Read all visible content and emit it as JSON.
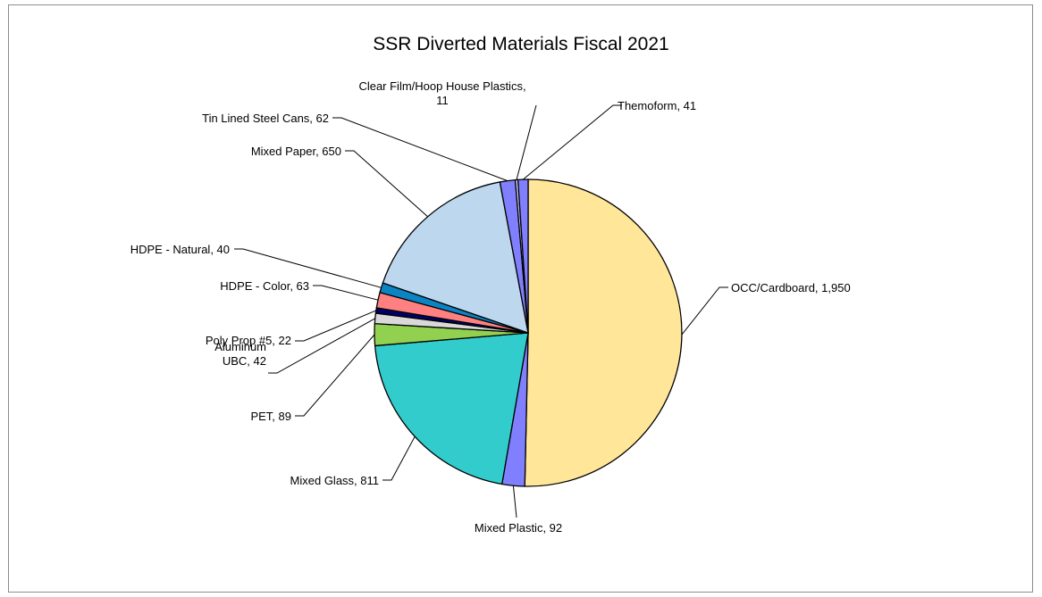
{
  "chart_data": {
    "type": "pie",
    "title": "SSR Diverted Materials Fiscal 2021",
    "slices": [
      {
        "label_lines": [
          "OCC/Cardboard, 1,950"
        ],
        "value": 1950,
        "color": "#ffe699"
      },
      {
        "label_lines": [
          "Mixed Plastic, 92"
        ],
        "value": 92,
        "color": "#8080ff"
      },
      {
        "label_lines": [
          "Mixed Glass, 811"
        ],
        "value": 811,
        "color": "#33cccc"
      },
      {
        "label_lines": [
          "PET, 89"
        ],
        "value": 89,
        "color": "#92d050"
      },
      {
        "label_lines": [
          "Aluminum",
          "UBC, 42"
        ],
        "value": 42,
        "color": "#d9d9d9"
      },
      {
        "label_lines": [
          "Poly Prop #5, 22"
        ],
        "value": 22,
        "color": "#000066"
      },
      {
        "label_lines": [
          "HDPE - Color, 63"
        ],
        "value": 63,
        "color": "#ff8080"
      },
      {
        "label_lines": [
          "HDPE - Natural, 40"
        ],
        "value": 40,
        "color": "#0b84c4"
      },
      {
        "label_lines": [
          "Mixed Paper, 650"
        ],
        "value": 650,
        "color": "#bdd7ee"
      },
      {
        "label_lines": [
          "Tin Lined Steel Cans, 62"
        ],
        "value": 62,
        "color": "#8080ff"
      },
      {
        "label_lines": [
          "Clear Film/Hoop House Plastics,",
          "11"
        ],
        "value": 11,
        "color": "#ccccff"
      },
      {
        "label_lines": [
          "Themoform, 41"
        ],
        "value": 41,
        "color": "#8080ff"
      }
    ]
  }
}
